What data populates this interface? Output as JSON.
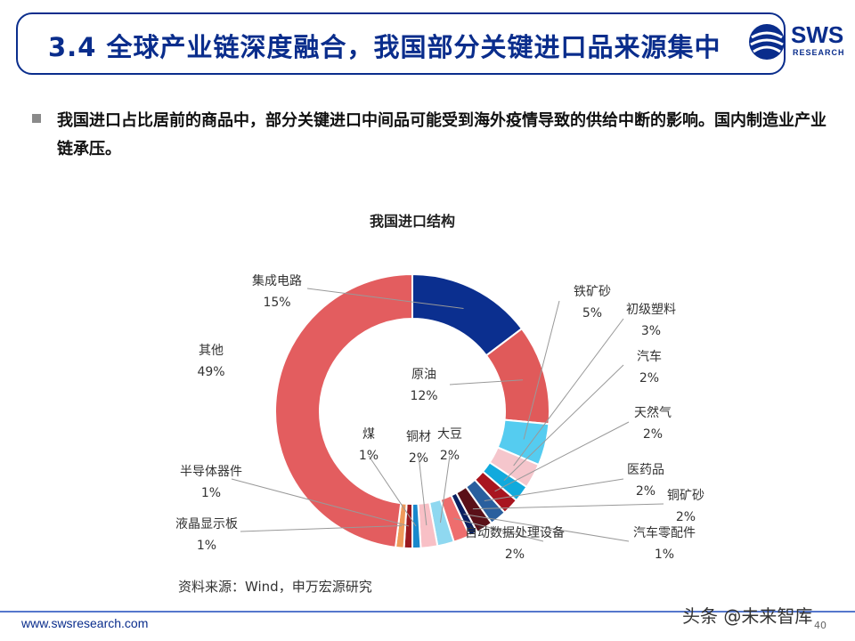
{
  "header": {
    "title": "3.4 全球产业链深度融合，我国部分关键进口品来源集中",
    "logo_text": "SWS",
    "logo_sub": "RESEARCH"
  },
  "bullet": {
    "text": "我国进口占比居前的商品中，部分关键进口中间品可能受到海外疫情导致的供给中断的影响。国内制造业产业链承压。"
  },
  "chart_data": {
    "type": "pie",
    "donut": true,
    "title": "我国进口结构",
    "categories": [
      "集成电路",
      "原油",
      "铁矿砂",
      "初级塑料",
      "汽车",
      "天然气",
      "医药品",
      "铜矿砂",
      "汽车零配件",
      "自动数据处理设备",
      "大豆",
      "铜材",
      "煤",
      "半导体器件",
      "液晶显示板",
      "其他"
    ],
    "values": [
      15,
      12,
      5,
      3,
      2,
      2,
      2,
      2,
      1,
      2,
      2,
      2,
      1,
      1,
      1,
      49
    ],
    "labels": [
      "15%",
      "12%",
      "5%",
      "3%",
      "2%",
      "2%",
      "2%",
      "2%",
      "1%",
      "2%",
      "2%",
      "2%",
      "1%",
      "1%",
      "1%",
      "49%"
    ],
    "colors": [
      "#0b2f8f",
      "#e05a5a",
      "#55ccf0",
      "#f5c6cc",
      "#11aadd",
      "#a8151f",
      "#2a5f9e",
      "#5a1018",
      "#0a2060",
      "#ee6e6e",
      "#8fd8f0",
      "#f8c0c6",
      "#1a88cc",
      "#9a1a20",
      "#ef9a5a",
      "#e35d5f"
    ],
    "legend": "none"
  },
  "footer": {
    "source": "资料来源：Wind，申万宏源研究",
    "url": "www.swsresearch.com",
    "page": "40",
    "watermark": "头条 @未来智库"
  }
}
